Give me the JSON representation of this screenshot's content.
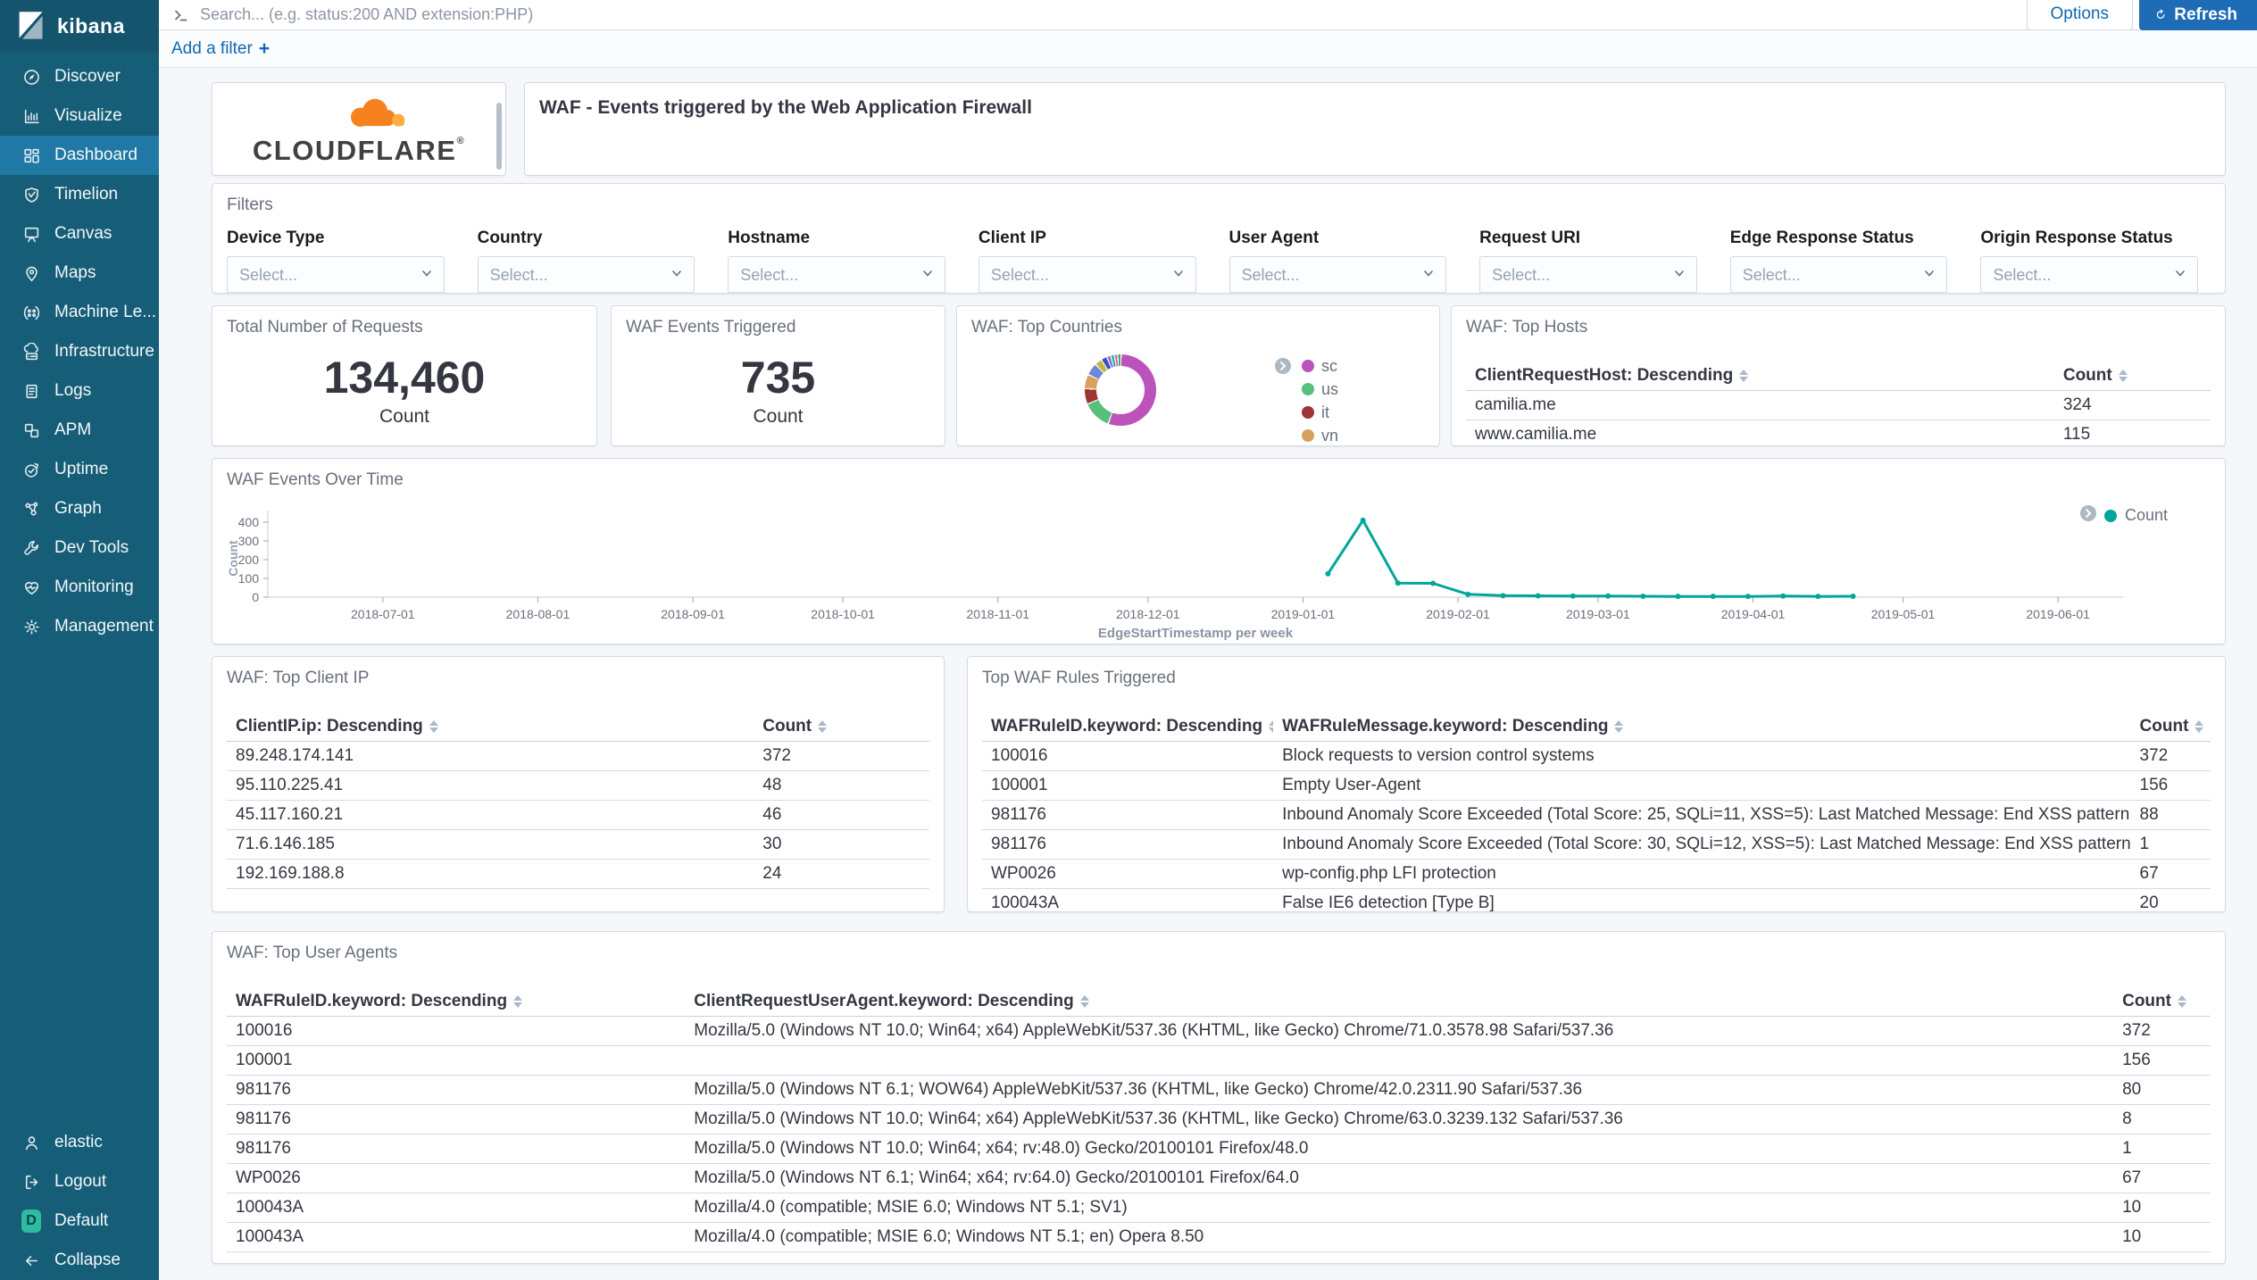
{
  "sidebar": {
    "logo_text": "kibana",
    "items": [
      {
        "label": "Discover",
        "icon": "discover"
      },
      {
        "label": "Visualize",
        "icon": "visualize"
      },
      {
        "label": "Dashboard",
        "icon": "dashboard",
        "active": true
      },
      {
        "label": "Timelion",
        "icon": "timelion"
      },
      {
        "label": "Canvas",
        "icon": "canvas"
      },
      {
        "label": "Maps",
        "icon": "maps"
      },
      {
        "label": "Machine Le...",
        "icon": "ml"
      },
      {
        "label": "Infrastructure",
        "icon": "infrastructure"
      },
      {
        "label": "Logs",
        "icon": "logs"
      },
      {
        "label": "APM",
        "icon": "apm"
      },
      {
        "label": "Uptime",
        "icon": "uptime"
      },
      {
        "label": "Graph",
        "icon": "graph"
      },
      {
        "label": "Dev Tools",
        "icon": "devtools"
      },
      {
        "label": "Monitoring",
        "icon": "monitoring"
      },
      {
        "label": "Management",
        "icon": "management"
      }
    ],
    "footer_items": [
      {
        "label": "elastic",
        "icon": "user"
      },
      {
        "label": "Logout",
        "icon": "logout"
      },
      {
        "label": "Default",
        "icon": "space-default",
        "badge": "D"
      },
      {
        "label": "Collapse",
        "icon": "collapse"
      }
    ]
  },
  "topbar": {
    "search_placeholder": "Search... (e.g. status:200 AND extension:PHP)",
    "options_label": "Options",
    "refresh_label": "Refresh"
  },
  "filter_bar": {
    "add_label": "Add a filter",
    "plus_symbol": "+"
  },
  "header_panel": {
    "title": "WAF - Events triggered by the Web Application Firewall",
    "brand_wordmark": "CLOUDFLARE",
    "brand_registered": "®"
  },
  "filters_panel": {
    "title": "Filters",
    "select_placeholder": "Select...",
    "filters": [
      {
        "label": "Device Type"
      },
      {
        "label": "Country"
      },
      {
        "label": "Hostname"
      },
      {
        "label": "Client IP"
      },
      {
        "label": "User Agent"
      },
      {
        "label": "Request URI"
      },
      {
        "label": "Edge Response Status"
      },
      {
        "label": "Origin Response Status"
      }
    ]
  },
  "metrics": [
    {
      "title": "Total Number of Requests",
      "value": "134,460",
      "label": "Count"
    },
    {
      "title": "WAF Events Triggered",
      "value": "735",
      "label": "Count"
    }
  ],
  "top_countries": {
    "title": "WAF: Top Countries"
  },
  "top_hosts": {
    "title": "WAF: Top Hosts",
    "columns": [
      "ClientRequestHost: Descending",
      "Count"
    ],
    "rows": [
      [
        "camilia.me",
        "324"
      ],
      [
        "www.camilia.me",
        "115"
      ]
    ]
  },
  "top_client_ip": {
    "title": "WAF: Top Client IP",
    "columns": [
      "ClientIP.ip: Descending",
      "Count"
    ],
    "rows": [
      [
        "89.248.174.141",
        "372"
      ],
      [
        "95.110.225.41",
        "48"
      ],
      [
        "45.117.160.21",
        "46"
      ],
      [
        "71.6.146.185",
        "30"
      ],
      [
        "192.169.188.8",
        "24"
      ]
    ]
  },
  "top_waf_rules": {
    "title": "Top WAF Rules Triggered",
    "columns": [
      "WAFRuleID.keyword: Descending",
      "WAFRuleMessage.keyword: Descending",
      "Count"
    ],
    "rows": [
      [
        "100016",
        "Block requests to version control systems",
        "372"
      ],
      [
        "100001",
        "Empty User-Agent",
        "156"
      ],
      [
        "981176",
        "Inbound Anomaly Score Exceeded (Total Score: 25, SQLi=11, XSS=5): Last Matched Message: End XSS pattern check",
        "88"
      ],
      [
        "981176",
        "Inbound Anomaly Score Exceeded (Total Score: 30, SQLi=12, XSS=5): Last Matched Message: End XSS pattern check",
        "1"
      ],
      [
        "WP0026",
        "wp-config.php LFI protection",
        "67"
      ],
      [
        "100043A",
        "False IE6 detection [Type B]",
        "20"
      ]
    ]
  },
  "top_user_agents": {
    "title": "WAF: Top User Agents",
    "columns": [
      "WAFRuleID.keyword: Descending",
      "ClientRequestUserAgent.keyword: Descending",
      "Count"
    ],
    "rows": [
      [
        "100016",
        "Mozilla/5.0 (Windows NT 10.0; Win64; x64) AppleWebKit/537.36 (KHTML, like Gecko) Chrome/71.0.3578.98 Safari/537.36",
        "372"
      ],
      [
        "100001",
        "",
        "156"
      ],
      [
        "981176",
        "Mozilla/5.0 (Windows NT 6.1; WOW64) AppleWebKit/537.36 (KHTML, like Gecko) Chrome/42.0.2311.90 Safari/537.36",
        "80"
      ],
      [
        "981176",
        "Mozilla/5.0 (Windows NT 10.0; Win64; x64) AppleWebKit/537.36 (KHTML, like Gecko) Chrome/63.0.3239.132 Safari/537.36",
        "8"
      ],
      [
        "981176",
        "Mozilla/5.0 (Windows NT 10.0; Win64; x64; rv:48.0) Gecko/20100101 Firefox/48.0",
        "1"
      ],
      [
        "WP0026",
        "Mozilla/5.0 (Windows NT 6.1; Win64; x64; rv:64.0) Gecko/20100101 Firefox/64.0",
        "67"
      ],
      [
        "100043A",
        "Mozilla/4.0 (compatible; MSIE 6.0; Windows NT 5.1; SV1)",
        "10"
      ],
      [
        "100043A",
        "Mozilla/4.0 (compatible; MSIE 6.0; Windows NT 5.1; en) Opera 8.50",
        "10"
      ]
    ]
  },
  "chart_data": [
    {
      "type": "line",
      "title": "WAF Events Over Time",
      "xlabel": "EdgeStartTimestamp per week",
      "ylabel": "Count",
      "ylim": [
        0,
        400
      ],
      "yticks": [
        0,
        100,
        200,
        300,
        400
      ],
      "x_ticks": [
        "2018-07-01",
        "2018-08-01",
        "2018-09-01",
        "2018-10-01",
        "2018-11-01",
        "2018-12-01",
        "2019-01-01",
        "2019-02-01",
        "2019-03-01",
        "2019-04-01",
        "2019-05-01",
        "2019-06-01"
      ],
      "legend_position": "right",
      "grid": false,
      "series": [
        {
          "name": "Count",
          "color": "#00A69B",
          "points": [
            [
              "2019-01-06",
              125
            ],
            [
              "2019-01-13",
              410
            ],
            [
              "2019-01-20",
              75
            ],
            [
              "2019-01-27",
              74
            ],
            [
              "2019-02-03",
              15
            ],
            [
              "2019-02-10",
              8
            ],
            [
              "2019-02-17",
              7
            ],
            [
              "2019-02-24",
              6
            ],
            [
              "2019-03-03",
              6
            ],
            [
              "2019-03-10",
              5
            ],
            [
              "2019-03-17",
              4
            ],
            [
              "2019-03-24",
              4
            ],
            [
              "2019-03-31",
              4
            ],
            [
              "2019-04-07",
              6
            ],
            [
              "2019-04-14",
              4
            ],
            [
              "2019-04-21",
              5
            ]
          ]
        }
      ]
    },
    {
      "type": "pie",
      "title": "WAF: Top Countries",
      "donut": true,
      "legend_visible_labels": [
        "sc",
        "us",
        "it",
        "vn"
      ],
      "slices": [
        {
          "label": "sc",
          "value": 55,
          "color": "#bc52bc"
        },
        {
          "label": "us",
          "value": 12.5,
          "color": "#57c17b"
        },
        {
          "label": "it",
          "value": 6.5,
          "color": "#9e3533"
        },
        {
          "label": "vn",
          "value": 6,
          "color": "#d8a15f"
        },
        {
          "label": "",
          "value": 5,
          "color": "#6f87d8"
        },
        {
          "label": "",
          "value": 2.8,
          "color": "#c9b63f"
        },
        {
          "label": "",
          "value": 2.2,
          "color": "#3c51c9"
        },
        {
          "label": "",
          "value": 1.2,
          "color": "#8d6ad4"
        },
        {
          "label": "",
          "value": 1.1,
          "color": "#25b0a4"
        },
        {
          "label": "",
          "value": 1.0,
          "color": "#d165c7"
        },
        {
          "label": "",
          "value": 1.0,
          "color": "#47a85e"
        }
      ]
    }
  ]
}
